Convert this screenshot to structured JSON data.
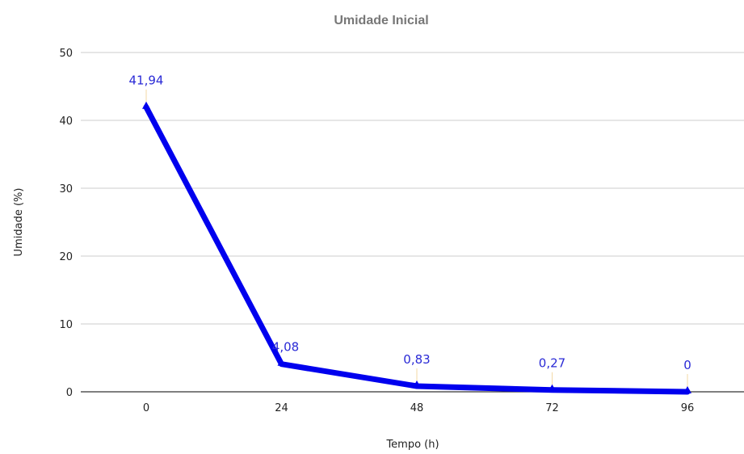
{
  "chart_data": {
    "type": "line",
    "title": "Umidade Inicial",
    "xlabel": "Tempo (h)",
    "ylabel": "Umidade (%)",
    "x": [
      0,
      24,
      48,
      72,
      96
    ],
    "series": [
      {
        "values": [
          41.94,
          4.08,
          0.83,
          0.27,
          0
        ],
        "labels": [
          "41,94",
          "4,08",
          "0,83",
          "0,27",
          "0"
        ],
        "color": "#0000ee"
      }
    ],
    "xticks": [
      "0",
      "24",
      "48",
      "72",
      "96"
    ],
    "yticks": [
      "0",
      "10",
      "20",
      "30",
      "40",
      "50"
    ],
    "ylim": [
      0,
      50
    ],
    "grid": true,
    "legend": "none",
    "data_label_color": "#2a2ad6"
  }
}
